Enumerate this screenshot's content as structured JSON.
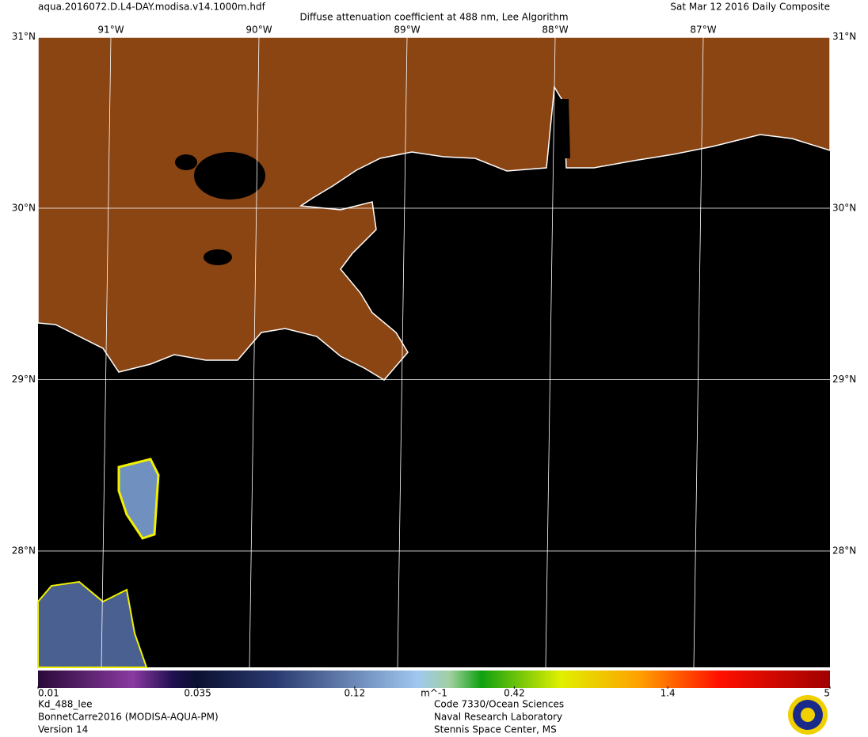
{
  "header": {
    "file": "aqua.2016072.D.L4-DAY.modisa.v14.1000m.hdf",
    "title": "Diffuse attenuation coefficient at 488 nm, Lee Algorithm",
    "date": "Sat Mar 12 2016 Daily Composite"
  },
  "map": {
    "longitudes": [
      {
        "value": -91,
        "label": "91°W"
      },
      {
        "value": -90,
        "label": "90°W"
      },
      {
        "value": -89,
        "label": "89°W"
      },
      {
        "value": -88,
        "label": "88°W"
      },
      {
        "value": -87,
        "label": "87°W"
      }
    ],
    "latitudes": [
      {
        "value": 31,
        "label": "31°N"
      },
      {
        "value": 30,
        "label": "30°N"
      },
      {
        "value": 29,
        "label": "29°N"
      },
      {
        "value": 28,
        "label": "28°N"
      }
    ]
  },
  "colorbar": {
    "scale": "log",
    "lim": [
      0.01,
      5
    ],
    "ticks": [
      0.01,
      0.035,
      0.12,
      0.42,
      1.4,
      5
    ],
    "unit": "m^-1"
  },
  "footer": {
    "left": [
      "Kd_488_lee",
      "BonnetCarre2016 (MODISA-AQUA-PM)",
      "Version 14"
    ],
    "right": [
      "Code 7330/Ocean Sciences",
      "Naval Research Laboratory",
      "Stennis Space Center, MS"
    ]
  }
}
